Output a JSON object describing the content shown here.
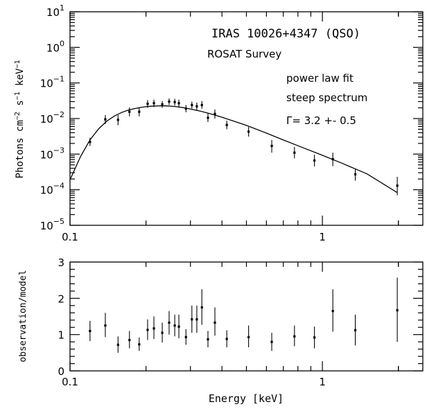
{
  "chart_data": [
    {
      "type": "scatter",
      "title": "IRAS 10026+4347 (QSO)",
      "subtitle": "ROSAT Survey",
      "annotations": [
        "power law fit",
        "steep spectrum",
        "Γ= 3.2 +- 0.5"
      ],
      "xlabel": "",
      "ylabel": "Photons cm^-2 s^-1 keV^-1",
      "xscale": "log",
      "yscale": "log",
      "xlim": [
        0.1,
        2.5
      ],
      "ylim": [
        1e-05,
        10
      ],
      "x_ticks": [
        "0.1",
        "1"
      ],
      "y_ticks": [
        {
          "base": "10",
          "exp": "1"
        },
        {
          "base": "10",
          "exp": "0"
        },
        {
          "base": "10",
          "exp": "−1"
        },
        {
          "base": "10",
          "exp": "−2"
        },
        {
          "base": "10",
          "exp": "−3"
        },
        {
          "base": "10",
          "exp": "−4"
        },
        {
          "base": "10",
          "exp": "−5"
        }
      ],
      "series": [
        {
          "kind": "points_with_error_bars",
          "x": [
            0.12,
            0.138,
            0.155,
            0.172,
            0.188,
            0.203,
            0.215,
            0.232,
            0.247,
            0.26,
            0.27,
            0.288,
            0.304,
            0.318,
            0.333,
            0.352,
            0.375,
            0.418,
            0.51,
            0.63,
            0.775,
            0.93,
            1.1,
            1.35,
            1.98
          ],
          "y": [
            0.0022,
            0.0095,
            0.0092,
            0.0155,
            0.0155,
            0.026,
            0.027,
            0.025,
            0.03,
            0.029,
            0.027,
            0.019,
            0.024,
            0.022,
            0.024,
            0.0105,
            0.0135,
            0.0066,
            0.0043,
            0.0017,
            0.0011,
            0.00066,
            0.00072,
            0.00027,
            0.00013
          ],
          "y_low": [
            0.0017,
            0.007,
            0.0065,
            0.0115,
            0.0115,
            0.02,
            0.021,
            0.02,
            0.024,
            0.023,
            0.021,
            0.015,
            0.019,
            0.017,
            0.019,
            0.008,
            0.01,
            0.005,
            0.0031,
            0.0011,
            0.00076,
            0.00045,
            0.00046,
            0.00018,
            7e-05
          ],
          "y_high": [
            0.0029,
            0.0125,
            0.0125,
            0.0205,
            0.0205,
            0.033,
            0.034,
            0.031,
            0.037,
            0.036,
            0.034,
            0.024,
            0.03,
            0.028,
            0.031,
            0.0138,
            0.018,
            0.0087,
            0.0058,
            0.0025,
            0.0016,
            0.00096,
            0.0011,
            0.00039,
            0.00023
          ]
        },
        {
          "kind": "model_curve",
          "x": [
            0.1,
            0.11,
            0.12,
            0.13,
            0.14,
            0.15,
            0.16,
            0.17,
            0.18,
            0.19,
            0.2,
            0.21,
            0.22,
            0.23,
            0.24,
            0.26,
            0.28,
            0.3,
            0.33,
            0.36,
            0.4,
            0.45,
            0.5,
            0.6,
            0.7,
            0.8,
            1.0,
            1.2,
            1.5,
            1.98
          ],
          "y": [
            0.00019,
            0.00085,
            0.0025,
            0.0052,
            0.0085,
            0.0118,
            0.0148,
            0.0172,
            0.019,
            0.0205,
            0.0215,
            0.0222,
            0.0226,
            0.0228,
            0.0227,
            0.0218,
            0.0203,
            0.0186,
            0.016,
            0.0136,
            0.0109,
            0.0083,
            0.0064,
            0.0039,
            0.0025,
            0.00172,
            0.00093,
            0.00055,
            0.00028,
            8.3e-05
          ]
        }
      ]
    },
    {
      "type": "scatter",
      "title": "",
      "xlabel": "Energy [keV]",
      "ylabel": "observation/model",
      "xscale": "log",
      "xlim": [
        0.1,
        2.5
      ],
      "ylim": [
        0,
        3
      ],
      "x_ticks": [
        "0.1",
        "1"
      ],
      "y_ticks": [
        "0",
        "1",
        "2",
        "3"
      ],
      "series": [
        {
          "kind": "points_with_error_bars",
          "x": [
            0.12,
            0.138,
            0.155,
            0.172,
            0.188,
            0.203,
            0.215,
            0.232,
            0.247,
            0.26,
            0.27,
            0.288,
            0.304,
            0.318,
            0.333,
            0.352,
            0.375,
            0.418,
            0.51,
            0.63,
            0.775,
            0.93,
            1.1,
            1.35,
            1.98
          ],
          "y": [
            1.1,
            1.25,
            0.72,
            0.85,
            0.73,
            1.13,
            1.17,
            1.05,
            1.33,
            1.25,
            1.22,
            0.93,
            1.42,
            1.42,
            1.75,
            0.87,
            1.33,
            0.88,
            0.93,
            0.8,
            0.95,
            0.92,
            1.65,
            1.12,
            1.67
          ],
          "y_low": [
            0.82,
            0.93,
            0.5,
            0.62,
            0.55,
            0.85,
            0.88,
            0.78,
            1.0,
            0.95,
            0.9,
            0.72,
            1.05,
            1.05,
            1.27,
            0.65,
            0.97,
            0.65,
            0.65,
            0.55,
            0.68,
            0.62,
            1.08,
            0.7,
            0.8
          ],
          "y_high": [
            1.38,
            1.6,
            0.95,
            1.1,
            0.92,
            1.42,
            1.5,
            1.33,
            1.65,
            1.55,
            1.55,
            1.15,
            1.8,
            1.8,
            2.25,
            1.1,
            1.75,
            1.12,
            1.25,
            1.05,
            1.25,
            1.22,
            2.25,
            1.55,
            2.57
          ]
        }
      ]
    }
  ]
}
